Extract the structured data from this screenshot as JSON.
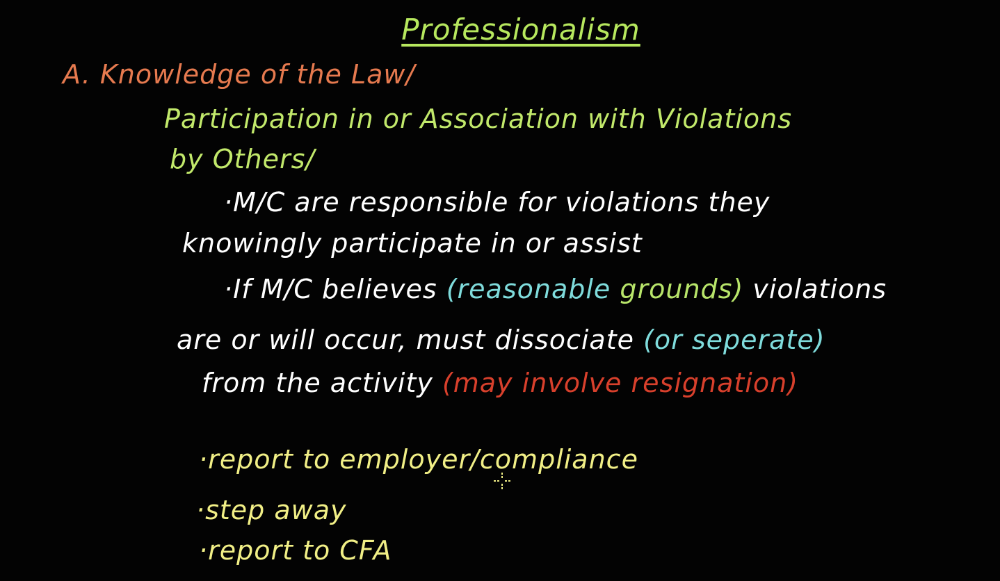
{
  "title": "Professionalism",
  "heading_a": "A. Knowledge of the Law/",
  "subheading": {
    "line1": "Participation in or Association with Violations",
    "line2": "by Others/"
  },
  "point1": {
    "bullet": "·",
    "line1": "M/C are responsible for violations they",
    "line2": "knowingly participate in or assist"
  },
  "point2": {
    "bullet": "·",
    "line1_a": "If M/C believes ",
    "line1_cyan": "(reasonable ",
    "line1_green": "grounds)",
    "line1_b": " violations",
    "line2_a": "are or will occur, must dissociate ",
    "line2_cyan": "(or seperate)",
    "line3_a": "from the activity ",
    "line3_red": "(may involve resignation)"
  },
  "actions": [
    {
      "bullet": "·",
      "text": "report to employer/compliance"
    },
    {
      "bullet": "·",
      "text": "step away"
    },
    {
      "bullet": "·",
      "text": "report to CFA"
    }
  ],
  "colors": {
    "background": "#030303",
    "title": "#b7e85e",
    "heading": "#e67a4f",
    "subheading": "#c2e96b",
    "body": "#ffffff",
    "highlight_cyan": "#7fdcdc",
    "highlight_green": "#b8e56a",
    "highlight_red": "#d8402c",
    "actions": "#f1ef86"
  },
  "cursor_icon": "crosshair-cursor-icon"
}
